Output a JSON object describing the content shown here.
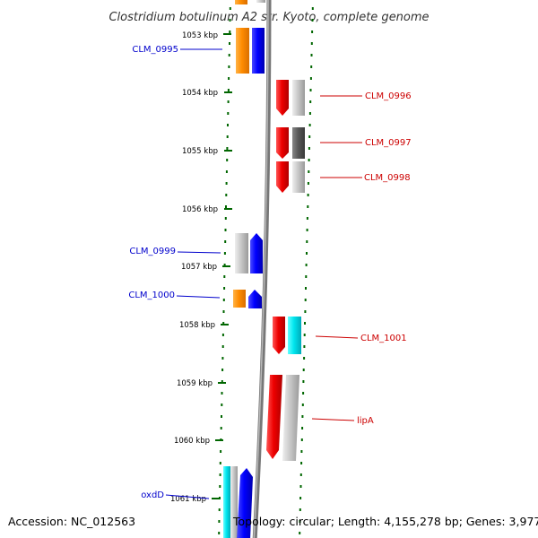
{
  "title": "Clostridium botulinum A2 str. Kyoto, complete genome",
  "footer": {
    "accession": "Accession: NC_012563",
    "summary": "Topology: circular; Length: 4,155,278 bp; Genes: 3,977"
  },
  "colors": {
    "forward_label": "#0000cc",
    "reverse_label": "#cc0000",
    "dots": "#006600",
    "backbone": "#888888"
  },
  "kbp_ticks": [
    {
      "label": "1053 kbp"
    },
    {
      "label": "1054 kbp"
    },
    {
      "label": "1055 kbp"
    },
    {
      "label": "1056 kbp"
    },
    {
      "label": "1057 kbp"
    },
    {
      "label": "1058 kbp"
    },
    {
      "label": "1059 kbp"
    },
    {
      "label": "1060 kbp"
    },
    {
      "label": "1061 kbp"
    }
  ],
  "genes": [
    {
      "name": "CLM_0995",
      "strand": "forward"
    },
    {
      "name": "CLM_0996",
      "strand": "reverse"
    },
    {
      "name": "CLM_0997",
      "strand": "reverse"
    },
    {
      "name": "CLM_0998",
      "strand": "reverse"
    },
    {
      "name": "CLM_0999",
      "strand": "forward"
    },
    {
      "name": "CLM_1000",
      "strand": "forward"
    },
    {
      "name": "CLM_1001",
      "strand": "reverse"
    },
    {
      "name": "lipA",
      "strand": "reverse"
    },
    {
      "name": "oxdD",
      "strand": "forward"
    }
  ]
}
